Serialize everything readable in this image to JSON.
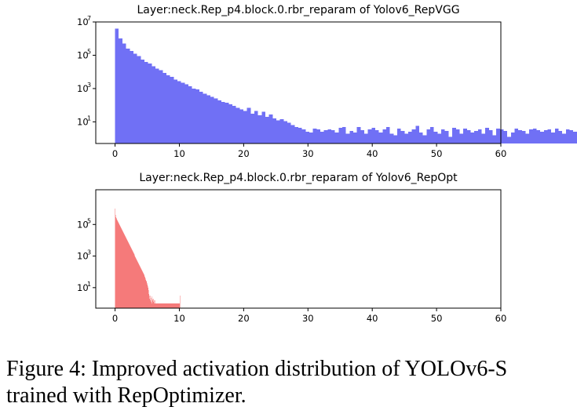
{
  "chart_data": [
    {
      "type": "bar",
      "title": "Layer:neck.Rep_p4.block.0.rbr_reparam of Yolov6_RepVGG",
      "xlabel": "",
      "ylabel": "",
      "xlim": [
        -3,
        60
      ],
      "ylim_log10": [
        -0.3,
        7
      ],
      "y_scale": "log",
      "x_ticks": [
        0,
        10,
        20,
        30,
        40,
        50,
        60
      ],
      "y_ticks": [
        {
          "base": "10",
          "exp": "1",
          "log": 1
        },
        {
          "base": "10",
          "exp": "3",
          "log": 3
        },
        {
          "base": "10",
          "exp": "5",
          "log": 5
        },
        {
          "base": "10",
          "exp": "7",
          "log": 7
        }
      ],
      "bar_color": "#7070f5",
      "bin_start": 0,
      "bin_width": 0.57,
      "series": [
        {
          "log10_counts": [
            6.6,
            6.0,
            5.7,
            5.4,
            5.25,
            5.1,
            4.95,
            4.75,
            4.6,
            4.5,
            4.35,
            4.2,
            4.1,
            3.95,
            3.8,
            3.7,
            3.55,
            3.45,
            3.35,
            3.25,
            3.15,
            3.0,
            2.95,
            2.8,
            2.7,
            2.6,
            2.5,
            2.4,
            2.3,
            2.2,
            2.15,
            2.05,
            1.95,
            1.85,
            1.75,
            1.65,
            1.85,
            1.5,
            1.65,
            1.4,
            1.6,
            1.3,
            1.45,
            1.2,
            1.1,
            1.15,
            1.05,
            0.95,
            0.8,
            0.7,
            0.65,
            0.55,
            0.4,
            0.35,
            0.6,
            0.55,
            0.4,
            0.5,
            0.55,
            0.5,
            0.35,
            0.65,
            0.7,
            0.3,
            0.45,
            0.35,
            0.7,
            0.5,
            0.3,
            0.55,
            0.65,
            0.5,
            0.35,
            0.55,
            0.7,
            0.3,
            0.2,
            0.6,
            0.45,
            0.3,
            0.4,
            0.55,
            0.75,
            0.35,
            0.2,
            0.55,
            0.7,
            0.4,
            0.3,
            0.55,
            0.45,
            0.1,
            0.65,
            0.55,
            0.3,
            0.6,
            0.5,
            0.35,
            0.45,
            0.55,
            0.3,
            0.65,
            0.5,
            0.2,
            0.6,
            0.55,
            0.45,
            0.1,
            0.35,
            0.6,
            0.5,
            0.45,
            0.3,
            0.55,
            0.6,
            0.5,
            0.4,
            0.5,
            0.55,
            0.35,
            0.6,
            0.45,
            0.3,
            0.55,
            0.5,
            0.4,
            0.45,
            0.6,
            0.45,
            0.55,
            0.35,
            0.55,
            0.45,
            0.3,
            0.55,
            0.5,
            0.35,
            0.45,
            0.6,
            0.5,
            0.55,
            0.35
          ]
        }
      ]
    },
    {
      "type": "bar",
      "title": "Layer:neck.Rep_p4.block.0.rbr_reparam of Yolov6_RepOpt",
      "xlabel": "",
      "ylabel": "",
      "xlim": [
        -3,
        60
      ],
      "ylim_log10": [
        -0.3,
        7.2
      ],
      "y_scale": "log",
      "x_ticks": [
        0,
        10,
        20,
        30,
        40,
        50,
        60
      ],
      "y_ticks": [
        {
          "base": "10",
          "exp": "1",
          "log": 1
        },
        {
          "base": "10",
          "exp": "3",
          "log": 3
        },
        {
          "base": "10",
          "exp": "5",
          "log": 5
        }
      ],
      "bar_color": "#f57a7a",
      "bin_start": 0,
      "bin_width": 0.06,
      "series": [
        {
          "log10_counts": [
            6.0,
            5.6,
            5.45,
            5.4,
            5.35,
            5.3,
            5.25,
            5.2,
            5.15,
            5.1,
            5.05,
            5.0,
            4.95,
            4.9,
            4.85,
            4.8,
            4.75,
            4.7,
            4.65,
            4.6,
            4.55,
            4.5,
            4.45,
            4.4,
            4.35,
            4.3,
            4.25,
            4.2,
            4.15,
            4.1,
            4.05,
            4.0,
            3.95,
            3.9,
            3.85,
            3.8,
            3.75,
            3.7,
            3.65,
            3.6,
            3.55,
            3.5,
            3.45,
            3.4,
            3.35,
            3.3,
            3.25,
            3.2,
            3.15,
            3.1,
            3.05,
            3.0,
            2.95,
            2.9,
            2.85,
            2.8,
            2.75,
            2.7,
            2.65,
            2.6,
            2.55,
            2.5,
            2.45,
            2.4,
            2.35,
            2.3,
            2.25,
            2.2,
            2.15,
            2.1,
            2.05,
            2.0,
            1.95,
            1.9,
            1.85,
            1.8,
            1.7,
            1.65,
            1.6,
            1.5,
            1.45,
            1.4,
            1.3,
            1.2,
            1.1,
            1.0,
            0.85,
            0.6,
            0.5,
            0.3,
            0.2,
            0.5,
            0.1,
            0.35,
            0.0,
            0.45,
            0.2,
            0.0,
            0.3,
            0.1,
            0.0,
            0.0,
            0.2,
            0.0,
            0.0,
            0.0,
            0.0,
            0.0,
            0.0,
            0.0,
            0.0,
            0.0,
            0.0,
            0.0,
            0.0,
            0.0,
            0.0,
            0.0,
            0.0,
            0.0,
            0.0,
            0.0,
            0.0,
            0.0,
            0.0,
            0.0,
            0.0,
            0.0,
            0.0,
            0.0,
            0.0,
            0.0,
            0.0,
            0.0,
            0.0,
            0.0,
            0.0,
            0.0,
            0.0,
            0.0,
            0.0,
            0.0,
            0.0,
            0.0,
            0.0,
            0.0,
            0.0,
            0.0,
            0.0,
            0.0,
            0.0,
            0.0,
            0.0,
            0.0,
            0.0,
            0.0,
            0.0,
            0.0,
            0.0,
            0.0,
            0.0,
            0.0,
            0.0,
            0.0,
            0.0,
            0.0,
            0.0,
            0.0,
            0.5
          ]
        }
      ]
    }
  ],
  "caption": {
    "label": "Figure 4:",
    "text": "Improved activation distribution of YOLOv6-S trained with RepOptimizer."
  }
}
